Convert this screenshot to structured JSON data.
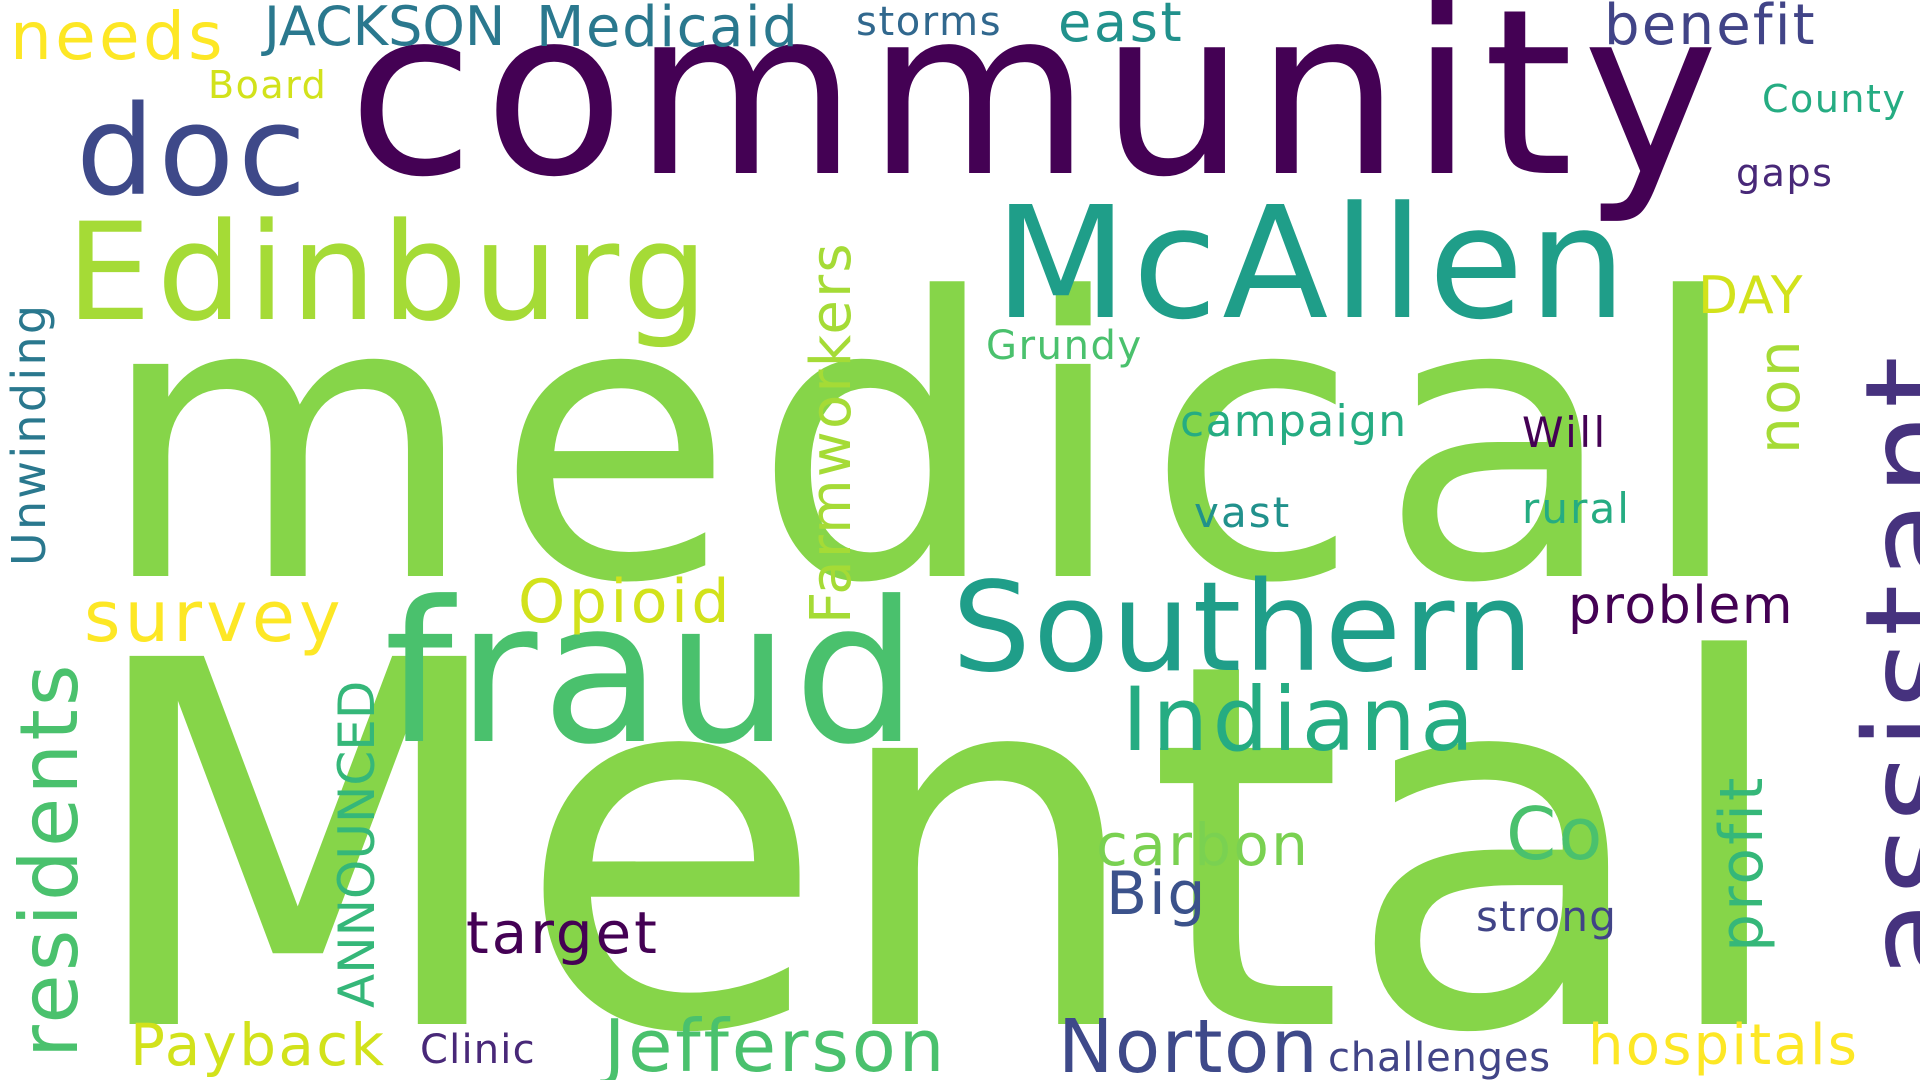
{
  "words": {
    "community": {
      "text": "community",
      "color": "#440154"
    },
    "medical": {
      "text": "medical",
      "color": "#86d549"
    },
    "mental": {
      "text": "Mental",
      "color": "#86d549"
    },
    "fraud": {
      "text": "fraud",
      "color": "#4ac16d"
    },
    "mcallen": {
      "text": "McAllen",
      "color": "#1f9e89"
    },
    "edinburg": {
      "text": "Edinburg",
      "color": "#a5db36"
    },
    "doc": {
      "text": "doc",
      "color": "#3e4989"
    },
    "assistant": {
      "text": "assistant",
      "color": "#46327e"
    },
    "southern": {
      "text": "Southern",
      "color": "#1f9e89"
    },
    "indiana": {
      "text": "Indiana",
      "color": "#25ac82"
    },
    "jefferson": {
      "text": "Jefferson",
      "color": "#4ac16d"
    },
    "norton": {
      "text": "Norton",
      "color": "#3e4989"
    },
    "residents": {
      "text": "residents",
      "color": "#4ac16d"
    },
    "survey": {
      "text": "survey",
      "color": "#fde725"
    },
    "opioid": {
      "text": "Opioid",
      "color": "#d2e21b"
    },
    "farmworkers": {
      "text": "Farmworkers",
      "color": "#a5db36"
    },
    "announced": {
      "text": "ANNOUNCED",
      "color": "#35b779"
    },
    "unwinding": {
      "text": "Unwinding",
      "color": "#2a788e"
    },
    "needs": {
      "text": "needs",
      "color": "#fde725"
    },
    "jackson": {
      "text": "JACKSON",
      "color": "#2a788e"
    },
    "medicaid": {
      "text": "Medicaid",
      "color": "#2a788e"
    },
    "storms": {
      "text": "storms",
      "color": "#31688e"
    },
    "east": {
      "text": "east",
      "color": "#21918c"
    },
    "benefit": {
      "text": "benefit",
      "color": "#414487"
    },
    "board": {
      "text": "Board",
      "color": "#d2e21b"
    },
    "county": {
      "text": "County",
      "color": "#25ac82"
    },
    "gaps": {
      "text": "gaps",
      "color": "#482878"
    },
    "day": {
      "text": "DAY",
      "color": "#d2e21b"
    },
    "non": {
      "text": "non",
      "color": "#a5db36"
    },
    "grundy": {
      "text": "Grundy",
      "color": "#4ac16d"
    },
    "campaign": {
      "text": "campaign",
      "color": "#25ac82"
    },
    "will": {
      "text": "Will",
      "color": "#440154"
    },
    "vast": {
      "text": "vast",
      "color": "#21918c"
    },
    "rural": {
      "text": "rural",
      "color": "#25ac82"
    },
    "problem": {
      "text": "problem",
      "color": "#440154"
    },
    "profit": {
      "text": "profit",
      "color": "#35b779"
    },
    "co": {
      "text": "Co",
      "color": "#4ac16d"
    },
    "carbon": {
      "text": "carbon",
      "color": "#7ad151"
    },
    "big": {
      "text": "Big",
      "color": "#3b528b"
    },
    "target": {
      "text": "target",
      "color": "#440154"
    },
    "strong": {
      "text": "strong",
      "color": "#414487"
    },
    "payback": {
      "text": "Payback",
      "color": "#d2e21b"
    },
    "clinic": {
      "text": "Clinic",
      "color": "#482878"
    },
    "challenges": {
      "text": "challenges",
      "color": "#414487"
    },
    "hospitals": {
      "text": "hospitals",
      "color": "#fde725"
    }
  }
}
